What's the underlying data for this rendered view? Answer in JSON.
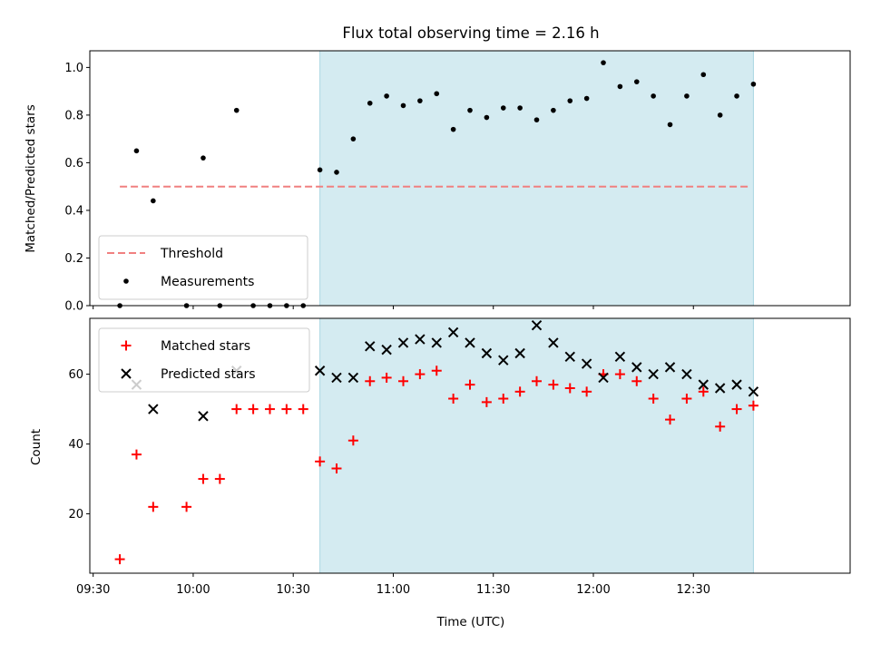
{
  "chart_data": {
    "title": "Flux total observing time = 2.16 h",
    "xlabel": "Time (UTC)",
    "xlim": [
      "09:29",
      "13:17"
    ],
    "x_ticks": [
      "09:30",
      "10:00",
      "10:30",
      "11:00",
      "11:30",
      "12:00",
      "12:30"
    ],
    "shaded_region": {
      "from": "10:38",
      "to": "12:48",
      "color": "#d4ebf1"
    },
    "top": {
      "type": "scatter",
      "ylabel": "Matched/Predicted stars",
      "ylim": [
        0,
        1.07
      ],
      "y_ticks": [
        "0.0",
        "0.2",
        "0.4",
        "0.6",
        "0.8",
        "1.0"
      ],
      "legend_position": "lower-left",
      "threshold": {
        "name": "Threshold",
        "value": 0.5,
        "x_from": "09:38",
        "x_to": "12:47",
        "color": "#f08080"
      },
      "series": [
        {
          "name": "Measurements",
          "color": "#000000",
          "points": [
            [
              "09:38",
              0.0
            ],
            [
              "09:43",
              0.65
            ],
            [
              "09:48",
              0.44
            ],
            [
              "09:58",
              0.0
            ],
            [
              "10:03",
              0.62
            ],
            [
              "10:08",
              0.0
            ],
            [
              "10:13",
              0.82
            ],
            [
              "10:18",
              0.0
            ],
            [
              "10:23",
              0.0
            ],
            [
              "10:28",
              0.0
            ],
            [
              "10:33",
              0.0
            ],
            [
              "10:38",
              0.57
            ],
            [
              "10:43",
              0.56
            ],
            [
              "10:48",
              0.7
            ],
            [
              "10:53",
              0.85
            ],
            [
              "10:58",
              0.88
            ],
            [
              "11:03",
              0.84
            ],
            [
              "11:08",
              0.86
            ],
            [
              "11:13",
              0.89
            ],
            [
              "11:18",
              0.74
            ],
            [
              "11:23",
              0.82
            ],
            [
              "11:28",
              0.79
            ],
            [
              "11:33",
              0.83
            ],
            [
              "11:38",
              0.83
            ],
            [
              "11:43",
              0.78
            ],
            [
              "11:48",
              0.82
            ],
            [
              "11:53",
              0.86
            ],
            [
              "11:58",
              0.87
            ],
            [
              "12:03",
              1.02
            ],
            [
              "12:08",
              0.92
            ],
            [
              "12:13",
              0.94
            ],
            [
              "12:18",
              0.88
            ],
            [
              "12:23",
              0.76
            ],
            [
              "12:28",
              0.88
            ],
            [
              "12:33",
              0.97
            ],
            [
              "12:38",
              0.8
            ],
            [
              "12:43",
              0.88
            ],
            [
              "12:48",
              0.93
            ]
          ]
        }
      ]
    },
    "bottom": {
      "type": "scatter",
      "ylabel": "Count",
      "ylim": [
        3,
        76
      ],
      "y_ticks": [
        "20",
        "40",
        "60"
      ],
      "legend_position": "upper-left",
      "series": [
        {
          "name": "Matched stars",
          "color": "#ff0000",
          "marker": "+",
          "points": [
            [
              "09:38",
              7
            ],
            [
              "09:43",
              37
            ],
            [
              "09:48",
              22
            ],
            [
              "09:58",
              22
            ],
            [
              "10:03",
              30
            ],
            [
              "10:08",
              30
            ],
            [
              "10:13",
              50
            ],
            [
              "10:18",
              50
            ],
            [
              "10:23",
              50
            ],
            [
              "10:28",
              50
            ],
            [
              "10:33",
              50
            ],
            [
              "10:38",
              35
            ],
            [
              "10:43",
              33
            ],
            [
              "10:48",
              41
            ],
            [
              "10:53",
              58
            ],
            [
              "10:58",
              59
            ],
            [
              "11:03",
              58
            ],
            [
              "11:08",
              60
            ],
            [
              "11:13",
              61
            ],
            [
              "11:18",
              53
            ],
            [
              "11:23",
              57
            ],
            [
              "11:28",
              52
            ],
            [
              "11:33",
              53
            ],
            [
              "11:38",
              55
            ],
            [
              "11:43",
              58
            ],
            [
              "11:48",
              57
            ],
            [
              "11:53",
              56
            ],
            [
              "11:58",
              55
            ],
            [
              "12:03",
              60
            ],
            [
              "12:08",
              60
            ],
            [
              "12:13",
              58
            ],
            [
              "12:18",
              53
            ],
            [
              "12:23",
              47
            ],
            [
              "12:28",
              53
            ],
            [
              "12:33",
              55
            ],
            [
              "12:38",
              45
            ],
            [
              "12:43",
              50
            ],
            [
              "12:48",
              51
            ]
          ]
        },
        {
          "name": "Predicted stars",
          "color": "#000000",
          "marker": "x",
          "points": [
            [
              "09:43",
              57
            ],
            [
              "09:48",
              50
            ],
            [
              "10:03",
              48
            ],
            [
              "10:13",
              61
            ],
            [
              "10:38",
              61
            ],
            [
              "10:43",
              59
            ],
            [
              "10:48",
              59
            ],
            [
              "10:53",
              68
            ],
            [
              "10:58",
              67
            ],
            [
              "11:03",
              69
            ],
            [
              "11:08",
              70
            ],
            [
              "11:13",
              69
            ],
            [
              "11:18",
              72
            ],
            [
              "11:23",
              69
            ],
            [
              "11:28",
              66
            ],
            [
              "11:33",
              64
            ],
            [
              "11:38",
              66
            ],
            [
              "11:43",
              74
            ],
            [
              "11:48",
              69
            ],
            [
              "11:53",
              65
            ],
            [
              "11:58",
              63
            ],
            [
              "12:03",
              59
            ],
            [
              "12:08",
              65
            ],
            [
              "12:13",
              62
            ],
            [
              "12:18",
              60
            ],
            [
              "12:23",
              62
            ],
            [
              "12:28",
              60
            ],
            [
              "12:33",
              57
            ],
            [
              "12:38",
              56
            ],
            [
              "12:43",
              57
            ],
            [
              "12:48",
              55
            ]
          ]
        }
      ]
    }
  }
}
